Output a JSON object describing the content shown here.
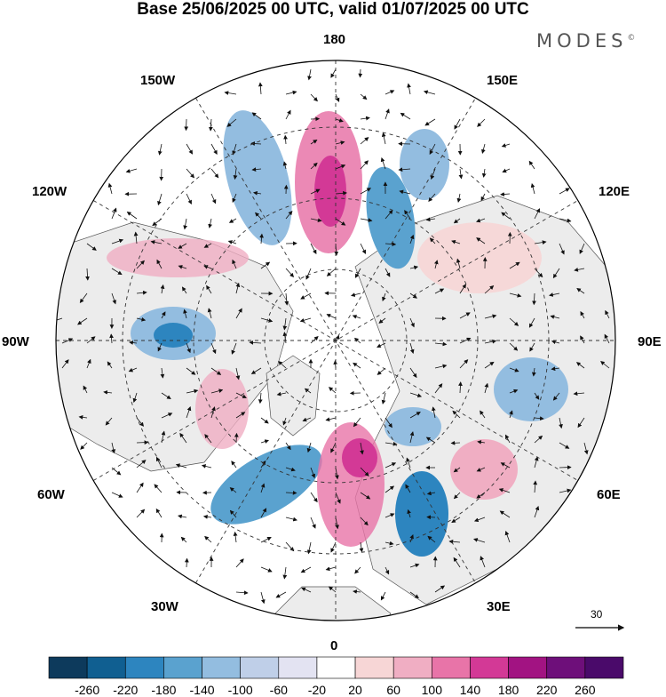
{
  "title": "Base 25/06/2025 00 UTC, valid 01/07/2025 00 UTC",
  "brand": {
    "name": "MODES",
    "mark": "©"
  },
  "longitude_labels": [
    {
      "id": "180",
      "text": "180"
    },
    {
      "id": "150E",
      "text": "150E"
    },
    {
      "id": "120E",
      "text": "120E"
    },
    {
      "id": "90E",
      "text": "90E"
    },
    {
      "id": "60E",
      "text": "60E"
    },
    {
      "id": "30E",
      "text": "30E"
    },
    {
      "id": "0",
      "text": "0"
    },
    {
      "id": "30W",
      "text": "30W"
    },
    {
      "id": "60W",
      "text": "60W"
    },
    {
      "id": "90W",
      "text": "90W"
    },
    {
      "id": "120W",
      "text": "120W"
    },
    {
      "id": "150W",
      "text": "150W"
    }
  ],
  "reference_vector": {
    "value": "30"
  },
  "colorbar": {
    "labels": [
      "-260",
      "-220",
      "-180",
      "-140",
      "-100",
      "-60",
      "-20",
      "20",
      "60",
      "100",
      "140",
      "180",
      "220",
      "260"
    ],
    "colors": [
      "#0d3a5c",
      "#105f91",
      "#2d85bf",
      "#5aa2cf",
      "#93bde0",
      "#bfcfe8",
      "#e3e3f2",
      "#ffffff",
      "#f7d6d6",
      "#f0aec3",
      "#e874a8",
      "#d33996",
      "#a21382",
      "#6e0f7a",
      "#4a0a6a"
    ]
  },
  "colors": {
    "land_fill": "#ececec",
    "coastline": "#555555",
    "grid": "#333333"
  }
}
